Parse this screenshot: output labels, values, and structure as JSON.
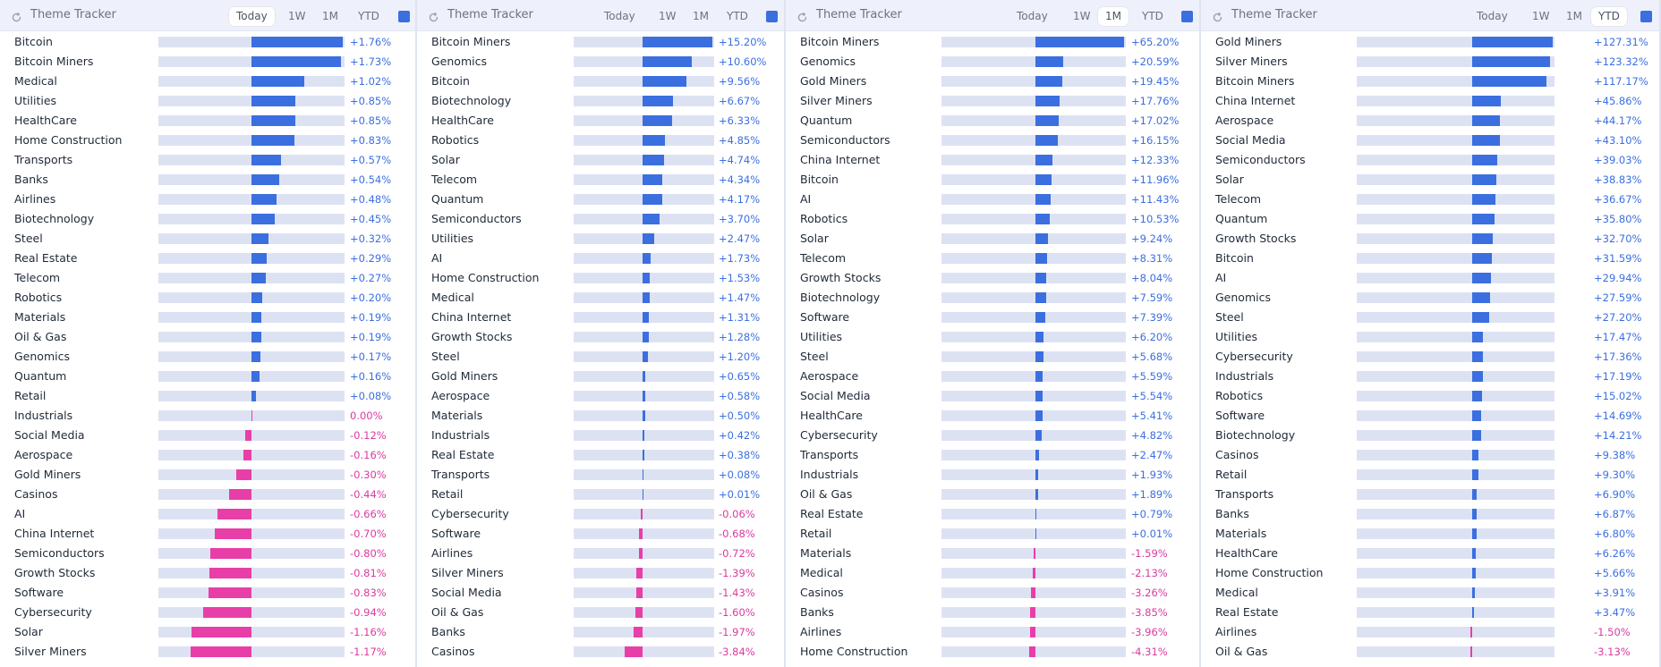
{
  "colors": {
    "positive": "#3b6fe0",
    "negative": "#e83ea8",
    "accent": "#3b6fe0"
  },
  "panels": [
    {
      "title": "Theme Tracker",
      "tabs": [
        "Today",
        "1W",
        "1M",
        "YTD"
      ],
      "active_tab": "Today",
      "max_abs": 1.76,
      "rows": [
        {
          "name": "Bitcoin",
          "value": 1.76,
          "label": "+1.76%"
        },
        {
          "name": "Bitcoin Miners",
          "value": 1.73,
          "label": "+1.73%"
        },
        {
          "name": "Medical",
          "value": 1.02,
          "label": "+1.02%"
        },
        {
          "name": "Utilities",
          "value": 0.85,
          "label": "+0.85%"
        },
        {
          "name": "HealthCare",
          "value": 0.85,
          "label": "+0.85%"
        },
        {
          "name": "Home Construction",
          "value": 0.83,
          "label": "+0.83%"
        },
        {
          "name": "Transports",
          "value": 0.57,
          "label": "+0.57%"
        },
        {
          "name": "Banks",
          "value": 0.54,
          "label": "+0.54%"
        },
        {
          "name": "Airlines",
          "value": 0.48,
          "label": "+0.48%"
        },
        {
          "name": "Biotechnology",
          "value": 0.45,
          "label": "+0.45%"
        },
        {
          "name": "Steel",
          "value": 0.32,
          "label": "+0.32%"
        },
        {
          "name": "Real Estate",
          "value": 0.29,
          "label": "+0.29%"
        },
        {
          "name": "Telecom",
          "value": 0.27,
          "label": "+0.27%"
        },
        {
          "name": "Robotics",
          "value": 0.2,
          "label": "+0.20%"
        },
        {
          "name": "Materials",
          "value": 0.19,
          "label": "+0.19%"
        },
        {
          "name": "Oil & Gas",
          "value": 0.19,
          "label": "+0.19%"
        },
        {
          "name": "Genomics",
          "value": 0.17,
          "label": "+0.17%"
        },
        {
          "name": "Quantum",
          "value": 0.16,
          "label": "+0.16%"
        },
        {
          "name": "Retail",
          "value": 0.08,
          "label": "+0.08%"
        },
        {
          "name": "Industrials",
          "value": 0.0,
          "label": "0.00%"
        },
        {
          "name": "Social Media",
          "value": -0.12,
          "label": "-0.12%"
        },
        {
          "name": "Aerospace",
          "value": -0.16,
          "label": "-0.16%"
        },
        {
          "name": "Gold Miners",
          "value": -0.3,
          "label": "-0.30%"
        },
        {
          "name": "Casinos",
          "value": -0.44,
          "label": "-0.44%"
        },
        {
          "name": "AI",
          "value": -0.66,
          "label": "-0.66%"
        },
        {
          "name": "China Internet",
          "value": -0.7,
          "label": "-0.70%"
        },
        {
          "name": "Semiconductors",
          "value": -0.8,
          "label": "-0.80%"
        },
        {
          "name": "Growth Stocks",
          "value": -0.81,
          "label": "-0.81%"
        },
        {
          "name": "Software",
          "value": -0.83,
          "label": "-0.83%"
        },
        {
          "name": "Cybersecurity",
          "value": -0.94,
          "label": "-0.94%"
        },
        {
          "name": "Solar",
          "value": -1.16,
          "label": "-1.16%"
        },
        {
          "name": "Silver Miners",
          "value": -1.17,
          "label": "-1.17%"
        }
      ]
    },
    {
      "title": "Theme Tracker",
      "tabs": [
        "Today",
        "1W",
        "1M",
        "YTD"
      ],
      "active_tab": "",
      "max_abs": 15.2,
      "rows": [
        {
          "name": "Bitcoin Miners",
          "value": 15.2,
          "label": "+15.20%"
        },
        {
          "name": "Genomics",
          "value": 10.6,
          "label": "+10.60%"
        },
        {
          "name": "Bitcoin",
          "value": 9.56,
          "label": "+9.56%"
        },
        {
          "name": "Biotechnology",
          "value": 6.67,
          "label": "+6.67%"
        },
        {
          "name": "HealthCare",
          "value": 6.33,
          "label": "+6.33%"
        },
        {
          "name": "Robotics",
          "value": 4.85,
          "label": "+4.85%"
        },
        {
          "name": "Solar",
          "value": 4.74,
          "label": "+4.74%"
        },
        {
          "name": "Telecom",
          "value": 4.34,
          "label": "+4.34%"
        },
        {
          "name": "Quantum",
          "value": 4.17,
          "label": "+4.17%"
        },
        {
          "name": "Semiconductors",
          "value": 3.7,
          "label": "+3.70%"
        },
        {
          "name": "Utilities",
          "value": 2.47,
          "label": "+2.47%"
        },
        {
          "name": "AI",
          "value": 1.73,
          "label": "+1.73%"
        },
        {
          "name": "Home Construction",
          "value": 1.53,
          "label": "+1.53%"
        },
        {
          "name": "Medical",
          "value": 1.47,
          "label": "+1.47%"
        },
        {
          "name": "China Internet",
          "value": 1.31,
          "label": "+1.31%"
        },
        {
          "name": "Growth Stocks",
          "value": 1.28,
          "label": "+1.28%"
        },
        {
          "name": "Steel",
          "value": 1.2,
          "label": "+1.20%"
        },
        {
          "name": "Gold Miners",
          "value": 0.65,
          "label": "+0.65%"
        },
        {
          "name": "Aerospace",
          "value": 0.58,
          "label": "+0.58%"
        },
        {
          "name": "Materials",
          "value": 0.5,
          "label": "+0.50%"
        },
        {
          "name": "Industrials",
          "value": 0.42,
          "label": "+0.42%"
        },
        {
          "name": "Real Estate",
          "value": 0.38,
          "label": "+0.38%"
        },
        {
          "name": "Transports",
          "value": 0.08,
          "label": "+0.08%"
        },
        {
          "name": "Retail",
          "value": 0.01,
          "label": "+0.01%"
        },
        {
          "name": "Cybersecurity",
          "value": -0.06,
          "label": "-0.06%"
        },
        {
          "name": "Software",
          "value": -0.68,
          "label": "-0.68%"
        },
        {
          "name": "Airlines",
          "value": -0.72,
          "label": "-0.72%"
        },
        {
          "name": "Silver Miners",
          "value": -1.39,
          "label": "-1.39%"
        },
        {
          "name": "Social Media",
          "value": -1.43,
          "label": "-1.43%"
        },
        {
          "name": "Oil & Gas",
          "value": -1.6,
          "label": "-1.60%"
        },
        {
          "name": "Banks",
          "value": -1.97,
          "label": "-1.97%"
        },
        {
          "name": "Casinos",
          "value": -3.84,
          "label": "-3.84%"
        }
      ]
    },
    {
      "title": "Theme Tracker",
      "tabs": [
        "Today",
        "1W",
        "1M",
        "YTD"
      ],
      "active_tab": "1M",
      "max_abs": 65.2,
      "rows": [
        {
          "name": "Bitcoin Miners",
          "value": 65.2,
          "label": "+65.20%"
        },
        {
          "name": "Genomics",
          "value": 20.59,
          "label": "+20.59%"
        },
        {
          "name": "Gold Miners",
          "value": 19.45,
          "label": "+19.45%"
        },
        {
          "name": "Silver Miners",
          "value": 17.76,
          "label": "+17.76%"
        },
        {
          "name": "Quantum",
          "value": 17.02,
          "label": "+17.02%"
        },
        {
          "name": "Semiconductors",
          "value": 16.15,
          "label": "+16.15%"
        },
        {
          "name": "China Internet",
          "value": 12.33,
          "label": "+12.33%"
        },
        {
          "name": "Bitcoin",
          "value": 11.96,
          "label": "+11.96%"
        },
        {
          "name": "AI",
          "value": 11.43,
          "label": "+11.43%"
        },
        {
          "name": "Robotics",
          "value": 10.53,
          "label": "+10.53%"
        },
        {
          "name": "Solar",
          "value": 9.24,
          "label": "+9.24%"
        },
        {
          "name": "Telecom",
          "value": 8.31,
          "label": "+8.31%"
        },
        {
          "name": "Growth Stocks",
          "value": 8.04,
          "label": "+8.04%"
        },
        {
          "name": "Biotechnology",
          "value": 7.59,
          "label": "+7.59%"
        },
        {
          "name": "Software",
          "value": 7.39,
          "label": "+7.39%"
        },
        {
          "name": "Utilities",
          "value": 6.2,
          "label": "+6.20%"
        },
        {
          "name": "Steel",
          "value": 5.68,
          "label": "+5.68%"
        },
        {
          "name": "Aerospace",
          "value": 5.59,
          "label": "+5.59%"
        },
        {
          "name": "Social Media",
          "value": 5.54,
          "label": "+5.54%"
        },
        {
          "name": "HealthCare",
          "value": 5.41,
          "label": "+5.41%"
        },
        {
          "name": "Cybersecurity",
          "value": 4.82,
          "label": "+4.82%"
        },
        {
          "name": "Transports",
          "value": 2.47,
          "label": "+2.47%"
        },
        {
          "name": "Industrials",
          "value": 1.93,
          "label": "+1.93%"
        },
        {
          "name": "Oil & Gas",
          "value": 1.89,
          "label": "+1.89%"
        },
        {
          "name": "Real Estate",
          "value": 0.79,
          "label": "+0.79%"
        },
        {
          "name": "Retail",
          "value": 0.01,
          "label": "+0.01%"
        },
        {
          "name": "Materials",
          "value": -1.59,
          "label": "-1.59%"
        },
        {
          "name": "Medical",
          "value": -2.13,
          "label": "-2.13%"
        },
        {
          "name": "Casinos",
          "value": -3.26,
          "label": "-3.26%"
        },
        {
          "name": "Banks",
          "value": -3.85,
          "label": "-3.85%"
        },
        {
          "name": "Airlines",
          "value": -3.96,
          "label": "-3.96%"
        },
        {
          "name": "Home Construction",
          "value": -4.31,
          "label": "-4.31%"
        }
      ]
    },
    {
      "title": "Theme Tracker",
      "tabs": [
        "Today",
        "1W",
        "1M",
        "YTD"
      ],
      "active_tab": "YTD",
      "max_abs": 127.31,
      "rows": [
        {
          "name": "Gold Miners",
          "value": 127.31,
          "label": "+127.31%"
        },
        {
          "name": "Silver Miners",
          "value": 123.32,
          "label": "+123.32%"
        },
        {
          "name": "Bitcoin Miners",
          "value": 117.17,
          "label": "+117.17%"
        },
        {
          "name": "China Internet",
          "value": 45.86,
          "label": "+45.86%"
        },
        {
          "name": "Aerospace",
          "value": 44.17,
          "label": "+44.17%"
        },
        {
          "name": "Social Media",
          "value": 43.1,
          "label": "+43.10%"
        },
        {
          "name": "Semiconductors",
          "value": 39.03,
          "label": "+39.03%"
        },
        {
          "name": "Solar",
          "value": 38.83,
          "label": "+38.83%"
        },
        {
          "name": "Telecom",
          "value": 36.67,
          "label": "+36.67%"
        },
        {
          "name": "Quantum",
          "value": 35.8,
          "label": "+35.80%"
        },
        {
          "name": "Growth Stocks",
          "value": 32.7,
          "label": "+32.70%"
        },
        {
          "name": "Bitcoin",
          "value": 31.59,
          "label": "+31.59%"
        },
        {
          "name": "AI",
          "value": 29.94,
          "label": "+29.94%"
        },
        {
          "name": "Genomics",
          "value": 27.59,
          "label": "+27.59%"
        },
        {
          "name": "Steel",
          "value": 27.2,
          "label": "+27.20%"
        },
        {
          "name": "Utilities",
          "value": 17.47,
          "label": "+17.47%"
        },
        {
          "name": "Cybersecurity",
          "value": 17.36,
          "label": "+17.36%"
        },
        {
          "name": "Industrials",
          "value": 17.19,
          "label": "+17.19%"
        },
        {
          "name": "Robotics",
          "value": 15.02,
          "label": "+15.02%"
        },
        {
          "name": "Software",
          "value": 14.69,
          "label": "+14.69%"
        },
        {
          "name": "Biotechnology",
          "value": 14.21,
          "label": "+14.21%"
        },
        {
          "name": "Casinos",
          "value": 9.38,
          "label": "+9.38%"
        },
        {
          "name": "Retail",
          "value": 9.3,
          "label": "+9.30%"
        },
        {
          "name": "Transports",
          "value": 6.9,
          "label": "+6.90%"
        },
        {
          "name": "Banks",
          "value": 6.87,
          "label": "+6.87%"
        },
        {
          "name": "Materials",
          "value": 6.8,
          "label": "+6.80%"
        },
        {
          "name": "HealthCare",
          "value": 6.26,
          "label": "+6.26%"
        },
        {
          "name": "Home Construction",
          "value": 5.66,
          "label": "+5.66%"
        },
        {
          "name": "Medical",
          "value": 3.91,
          "label": "+3.91%"
        },
        {
          "name": "Real Estate",
          "value": 3.47,
          "label": "+3.47%"
        },
        {
          "name": "Airlines",
          "value": -1.5,
          "label": "-1.50%"
        },
        {
          "name": "Oil & Gas",
          "value": -3.13,
          "label": "-3.13%"
        }
      ]
    }
  ]
}
